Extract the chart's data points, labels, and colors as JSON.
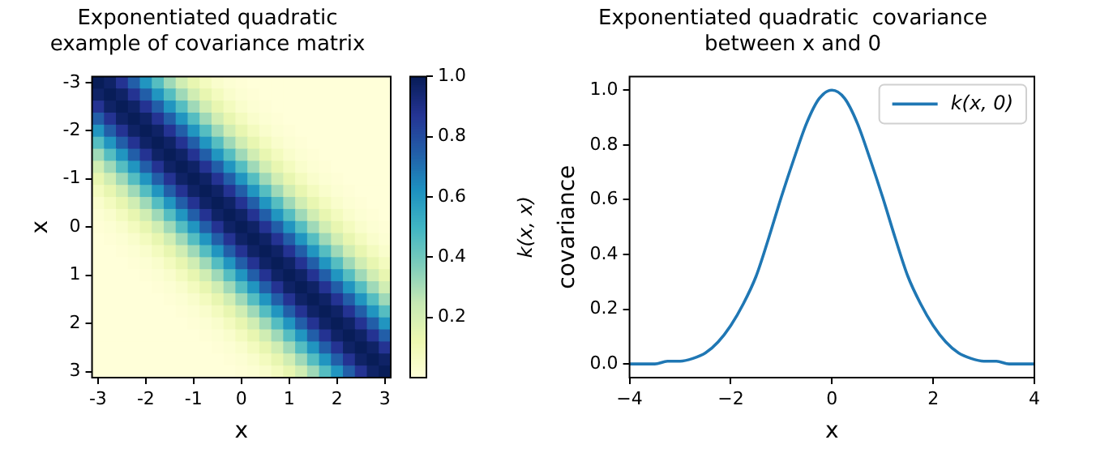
{
  "chart_data": [
    {
      "type": "heatmap",
      "title": "Exponentiated quadratic\nexample of covariance matrix",
      "xlabel": "x",
      "ylabel": "x",
      "clabel": "k(x, x)",
      "categories": [
        "-3",
        null,
        null,
        null,
        "-2",
        null,
        null,
        null,
        "-1",
        null,
        null,
        null,
        "0",
        null,
        null,
        null,
        "1",
        null,
        null,
        null,
        "2",
        null,
        null,
        null,
        "3"
      ],
      "y_categories": [
        "-3",
        null,
        null,
        null,
        "-2",
        null,
        null,
        null,
        "-1",
        null,
        null,
        null,
        "0",
        null,
        null,
        null,
        "1",
        null,
        null,
        null,
        "2",
        null,
        null,
        null,
        "3"
      ],
      "cells": [
        [
          1,
          0.97,
          0.88,
          0.75,
          0.61,
          0.46,
          0.32,
          0.22,
          0.14,
          0.08,
          0.04,
          0.02,
          0.01,
          0,
          0,
          0,
          0,
          0,
          0,
          0,
          0,
          0,
          0,
          0,
          0
        ],
        [
          0.97,
          1,
          0.97,
          0.88,
          0.75,
          0.61,
          0.46,
          0.32,
          0.22,
          0.14,
          0.08,
          0.04,
          0.02,
          0.01,
          0,
          0,
          0,
          0,
          0,
          0,
          0,
          0,
          0,
          0,
          0
        ],
        [
          0.88,
          0.97,
          1,
          0.97,
          0.88,
          0.75,
          0.61,
          0.46,
          0.32,
          0.22,
          0.14,
          0.08,
          0.04,
          0.02,
          0.01,
          0,
          0,
          0,
          0,
          0,
          0,
          0,
          0,
          0,
          0
        ],
        [
          0.75,
          0.88,
          0.97,
          1,
          0.97,
          0.88,
          0.75,
          0.61,
          0.46,
          0.32,
          0.22,
          0.14,
          0.08,
          0.04,
          0.02,
          0.01,
          0,
          0,
          0,
          0,
          0,
          0,
          0,
          0,
          0
        ],
        [
          0.61,
          0.75,
          0.88,
          0.97,
          1,
          0.97,
          0.88,
          0.75,
          0.61,
          0.46,
          0.32,
          0.22,
          0.14,
          0.08,
          0.04,
          0.02,
          0.01,
          0,
          0,
          0,
          0,
          0,
          0,
          0,
          0
        ],
        [
          0.46,
          0.61,
          0.75,
          0.88,
          0.97,
          1,
          0.97,
          0.88,
          0.75,
          0.61,
          0.46,
          0.32,
          0.22,
          0.14,
          0.08,
          0.04,
          0.02,
          0.01,
          0,
          0,
          0,
          0,
          0,
          0,
          0
        ],
        [
          0.32,
          0.46,
          0.61,
          0.75,
          0.88,
          0.97,
          1,
          0.97,
          0.88,
          0.75,
          0.61,
          0.46,
          0.32,
          0.22,
          0.14,
          0.08,
          0.04,
          0.02,
          0.01,
          0,
          0,
          0,
          0,
          0,
          0
        ],
        [
          0.22,
          0.32,
          0.46,
          0.61,
          0.75,
          0.88,
          0.97,
          1,
          0.97,
          0.88,
          0.75,
          0.61,
          0.46,
          0.32,
          0.22,
          0.14,
          0.08,
          0.04,
          0.02,
          0.01,
          0,
          0,
          0,
          0,
          0
        ],
        [
          0.14,
          0.22,
          0.32,
          0.46,
          0.61,
          0.75,
          0.88,
          0.97,
          1,
          0.97,
          0.88,
          0.75,
          0.61,
          0.46,
          0.32,
          0.22,
          0.14,
          0.08,
          0.04,
          0.02,
          0.01,
          0,
          0,
          0,
          0
        ],
        [
          0.08,
          0.14,
          0.22,
          0.32,
          0.46,
          0.61,
          0.75,
          0.88,
          0.97,
          1,
          0.97,
          0.88,
          0.75,
          0.61,
          0.46,
          0.32,
          0.22,
          0.14,
          0.08,
          0.04,
          0.02,
          0.01,
          0,
          0,
          0
        ],
        [
          0.04,
          0.08,
          0.14,
          0.22,
          0.32,
          0.46,
          0.61,
          0.75,
          0.88,
          0.97,
          1,
          0.97,
          0.88,
          0.75,
          0.61,
          0.46,
          0.32,
          0.22,
          0.14,
          0.08,
          0.04,
          0.02,
          0.01,
          0,
          0
        ],
        [
          0.02,
          0.04,
          0.08,
          0.14,
          0.22,
          0.32,
          0.46,
          0.61,
          0.75,
          0.88,
          0.97,
          1,
          0.97,
          0.88,
          0.75,
          0.61,
          0.46,
          0.32,
          0.22,
          0.14,
          0.08,
          0.04,
          0.02,
          0.01,
          0
        ],
        [
          0.01,
          0.02,
          0.04,
          0.08,
          0.14,
          0.22,
          0.32,
          0.46,
          0.61,
          0.75,
          0.88,
          0.97,
          1,
          0.97,
          0.88,
          0.75,
          0.61,
          0.46,
          0.32,
          0.22,
          0.14,
          0.08,
          0.04,
          0.02,
          0.01
        ],
        [
          0,
          0.01,
          0.02,
          0.04,
          0.08,
          0.14,
          0.22,
          0.32,
          0.46,
          0.61,
          0.75,
          0.88,
          0.97,
          1,
          0.97,
          0.88,
          0.75,
          0.61,
          0.46,
          0.32,
          0.22,
          0.14,
          0.08,
          0.04,
          0.02
        ],
        [
          0,
          0,
          0.01,
          0.02,
          0.04,
          0.08,
          0.14,
          0.22,
          0.32,
          0.46,
          0.61,
          0.75,
          0.88,
          0.97,
          1,
          0.97,
          0.88,
          0.75,
          0.61,
          0.46,
          0.32,
          0.22,
          0.14,
          0.08,
          0.04
        ],
        [
          0,
          0,
          0,
          0.01,
          0.02,
          0.04,
          0.08,
          0.14,
          0.22,
          0.32,
          0.46,
          0.61,
          0.75,
          0.88,
          0.97,
          1,
          0.97,
          0.88,
          0.75,
          0.61,
          0.46,
          0.32,
          0.22,
          0.14,
          0.08
        ],
        [
          0,
          0,
          0,
          0,
          0.01,
          0.02,
          0.04,
          0.08,
          0.14,
          0.22,
          0.32,
          0.46,
          0.61,
          0.75,
          0.88,
          0.97,
          1,
          0.97,
          0.88,
          0.75,
          0.61,
          0.46,
          0.32,
          0.22,
          0.14
        ],
        [
          0,
          0,
          0,
          0,
          0,
          0.01,
          0.02,
          0.04,
          0.08,
          0.14,
          0.22,
          0.32,
          0.46,
          0.61,
          0.75,
          0.88,
          0.97,
          1,
          0.97,
          0.88,
          0.75,
          0.61,
          0.46,
          0.32,
          0.22
        ],
        [
          0,
          0,
          0,
          0,
          0,
          0,
          0.01,
          0.02,
          0.04,
          0.08,
          0.14,
          0.22,
          0.32,
          0.46,
          0.61,
          0.75,
          0.88,
          0.97,
          1,
          0.97,
          0.88,
          0.75,
          0.61,
          0.46,
          0.32
        ],
        [
          0,
          0,
          0,
          0,
          0,
          0,
          0,
          0.01,
          0.02,
          0.04,
          0.08,
          0.14,
          0.22,
          0.32,
          0.46,
          0.61,
          0.75,
          0.88,
          0.97,
          1,
          0.97,
          0.88,
          0.75,
          0.61,
          0.46
        ],
        [
          0,
          0,
          0,
          0,
          0,
          0,
          0,
          0,
          0.01,
          0.02,
          0.04,
          0.08,
          0.14,
          0.22,
          0.32,
          0.46,
          0.61,
          0.75,
          0.88,
          0.97,
          1,
          0.97,
          0.88,
          0.75,
          0.61
        ],
        [
          0,
          0,
          0,
          0,
          0,
          0,
          0,
          0,
          0,
          0.01,
          0.02,
          0.04,
          0.08,
          0.14,
          0.22,
          0.32,
          0.46,
          0.61,
          0.75,
          0.88,
          0.97,
          1,
          0.97,
          0.88,
          0.75
        ],
        [
          0,
          0,
          0,
          0,
          0,
          0,
          0,
          0,
          0,
          0,
          0.01,
          0.02,
          0.04,
          0.08,
          0.14,
          0.22,
          0.32,
          0.46,
          0.61,
          0.75,
          0.88,
          0.97,
          1,
          0.97,
          0.88
        ],
        [
          0,
          0,
          0,
          0,
          0,
          0,
          0,
          0,
          0,
          0,
          0,
          0.01,
          0.02,
          0.04,
          0.08,
          0.14,
          0.22,
          0.32,
          0.46,
          0.61,
          0.75,
          0.88,
          0.97,
          1,
          0.97
        ],
        [
          0,
          0,
          0,
          0,
          0,
          0,
          0,
          0,
          0,
          0,
          0,
          0,
          0.01,
          0.02,
          0.04,
          0.08,
          0.14,
          0.22,
          0.32,
          0.46,
          0.61,
          0.75,
          0.88,
          0.97,
          1
        ]
      ],
      "clim": [
        0,
        1
      ],
      "cticks": [
        0.2,
        0.4,
        0.6,
        {
          "value": 0.8,
          "label": "0.8"
        },
        {
          "value": 1,
          "label": "1.0"
        }
      ]
    },
    {
      "type": "line",
      "title": "Exponentiated quadratic  covariance\nbetween x and 0",
      "xlabel": "x",
      "ylabel": "covariance",
      "x": [
        -4,
        -3.75,
        -3.5,
        -3.25,
        -3,
        -2.75,
        -2.5,
        -2.25,
        -2,
        -1.75,
        -1.5,
        -1.25,
        -1,
        -0.75,
        -0.5,
        -0.25,
        0,
        0.25,
        0.5,
        0.75,
        1,
        1.25,
        1.5,
        1.75,
        2,
        2.25,
        2.5,
        2.75,
        3,
        3.25,
        3.5,
        3.75,
        4
      ],
      "series": [
        {
          "name": "k(x, 0)",
          "color": "#1f77b4",
          "values": [
            0,
            0,
            0,
            0.01,
            0.01,
            0.02,
            0.04,
            0.08,
            0.14,
            0.22,
            0.32,
            0.46,
            0.61,
            0.75,
            0.88,
            0.97,
            1,
            0.97,
            0.88,
            0.75,
            0.61,
            0.46,
            0.32,
            0.22,
            0.14,
            0.08,
            0.04,
            0.02,
            0.01,
            0.01,
            0,
            0,
            0
          ]
        }
      ],
      "xlim": [
        -4,
        4
      ],
      "xticks": [
        {
          "value": -4,
          "label": "−4"
        },
        {
          "value": -2,
          "label": "−2"
        },
        0,
        2,
        4
      ],
      "ylim": [
        -0.05,
        1.05
      ],
      "yticks": [
        {
          "value": 0,
          "label": "0.0"
        },
        0.2,
        0.4,
        0.6,
        0.8,
        {
          "value": 1,
          "label": "1.0"
        }
      ],
      "legend": "top right",
      "grid": false
    }
  ]
}
